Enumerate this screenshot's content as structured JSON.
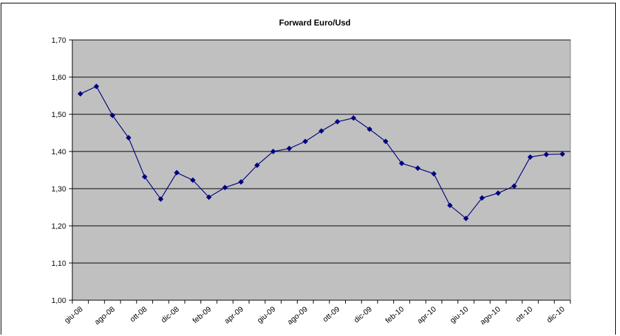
{
  "chart_data": {
    "type": "line",
    "title": "Forward Euro/Usd",
    "xlabel": "",
    "ylabel": "",
    "ylim": [
      1.0,
      1.7
    ],
    "y_ticks": [
      "1,00",
      "1,10",
      "1,20",
      "1,30",
      "1,40",
      "1,50",
      "1,60",
      "1,70"
    ],
    "x_tick_labels": [
      "giu-08",
      "ago-08",
      "ott-08",
      "dic-08",
      "feb-09",
      "apr-09",
      "giu-09",
      "ago-09",
      "ott-09",
      "dic-09",
      "feb-10",
      "apr-10",
      "giu-10",
      "ago-10",
      "ott-10",
      "dic-10"
    ],
    "grid": true,
    "legend": "none",
    "colors": {
      "plot_background": "#c0c0c0",
      "line": "#000080",
      "grid": "#000000"
    },
    "series": [
      {
        "values": [
          1.555,
          1.575,
          1.497,
          1.437,
          1.332,
          1.272,
          1.343,
          1.323,
          1.277,
          1.303,
          1.318,
          1.363,
          1.4,
          1.408,
          1.427,
          1.455,
          1.48,
          1.49,
          1.46,
          1.427,
          1.368,
          1.355,
          1.34,
          1.255,
          1.22,
          1.275,
          1.288,
          1.307,
          1.385,
          1.392,
          1.393
        ]
      }
    ]
  }
}
